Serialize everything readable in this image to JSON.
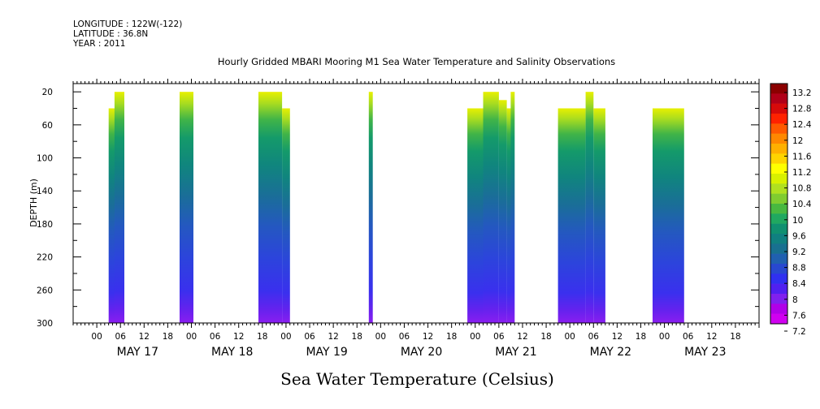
{
  "header": {
    "longitude": "LONGITUDE : 122W(-122)",
    "latitude": "LATITUDE : 36.8N",
    "year": "YEAR : 2011"
  },
  "chart_data": {
    "type": "heatmap",
    "title": "Hourly Gridded MBARI Mooring M1 Sea Water Temperature and Salinity Observations",
    "bottom_label": "Sea Water Temperature (Celsius)",
    "ylabel": "DEPTH (m)",
    "y_reversed": true,
    "ylim": [
      300,
      10
    ],
    "y_ticks": [
      20,
      60,
      100,
      140,
      180,
      220,
      260,
      300
    ],
    "x_unit": "hours since May 16 18:00",
    "xlim": [
      0,
      174
    ],
    "x_hour_labels": [
      "00",
      "06",
      "12",
      "18",
      "00",
      "06",
      "12",
      "18",
      "00",
      "06",
      "12",
      "18",
      "00",
      "06",
      "12",
      "18",
      "00",
      "06",
      "12",
      "18",
      "00",
      "06",
      "12",
      "18",
      "00",
      "06",
      "12",
      "18"
    ],
    "x_day_labels": [
      "MAY 17",
      "MAY 18",
      "MAY 19",
      "MAY 20",
      "MAY 21",
      "MAY 22",
      "MAY 23"
    ],
    "colorbar": {
      "ticks": [
        13.2,
        12.8,
        12.4,
        12,
        11.6,
        11.2,
        10.8,
        10.4,
        10,
        9.6,
        9.2,
        8.8,
        8.4,
        8,
        7.6,
        7.2
      ],
      "colors": [
        "#8b0000",
        "#b00018",
        "#d60a0a",
        "#ff2200",
        "#ff5a00",
        "#ff8800",
        "#ffb000",
        "#ffd400",
        "#ffff00",
        "#d8f000",
        "#b0e020",
        "#80cc30",
        "#48b840",
        "#20a860",
        "#109070",
        "#108080",
        "#187090",
        "#2060b0",
        "#2848d0",
        "#3030f0",
        "#5020f0",
        "#8020ee",
        "#b000e8",
        "#d000f0"
      ]
    },
    "data_segments": [
      {
        "x": [
          9,
          10.5
        ],
        "top": 40
      },
      {
        "x": [
          10.5,
          13
        ],
        "top": 20
      },
      {
        "x": [
          27,
          30.5
        ],
        "top": 20
      },
      {
        "x": [
          47,
          53
        ],
        "top": 20
      },
      {
        "x": [
          53,
          55
        ],
        "top": 40
      },
      {
        "x": [
          75,
          76
        ],
        "top": 20
      },
      {
        "x": [
          100,
          104
        ],
        "top": 40
      },
      {
        "x": [
          104,
          108
        ],
        "top": 20
      },
      {
        "x": [
          108,
          110
        ],
        "top": 30
      },
      {
        "x": [
          110,
          111
        ],
        "top": 40
      },
      {
        "x": [
          111,
          112
        ],
        "top": 20
      },
      {
        "x": [
          123,
          130
        ],
        "top": 40
      },
      {
        "x": [
          130,
          132
        ],
        "top": 20
      },
      {
        "x": [
          132,
          135
        ],
        "top": 40
      },
      {
        "x": [
          147,
          155
        ],
        "top": 40
      }
    ]
  }
}
